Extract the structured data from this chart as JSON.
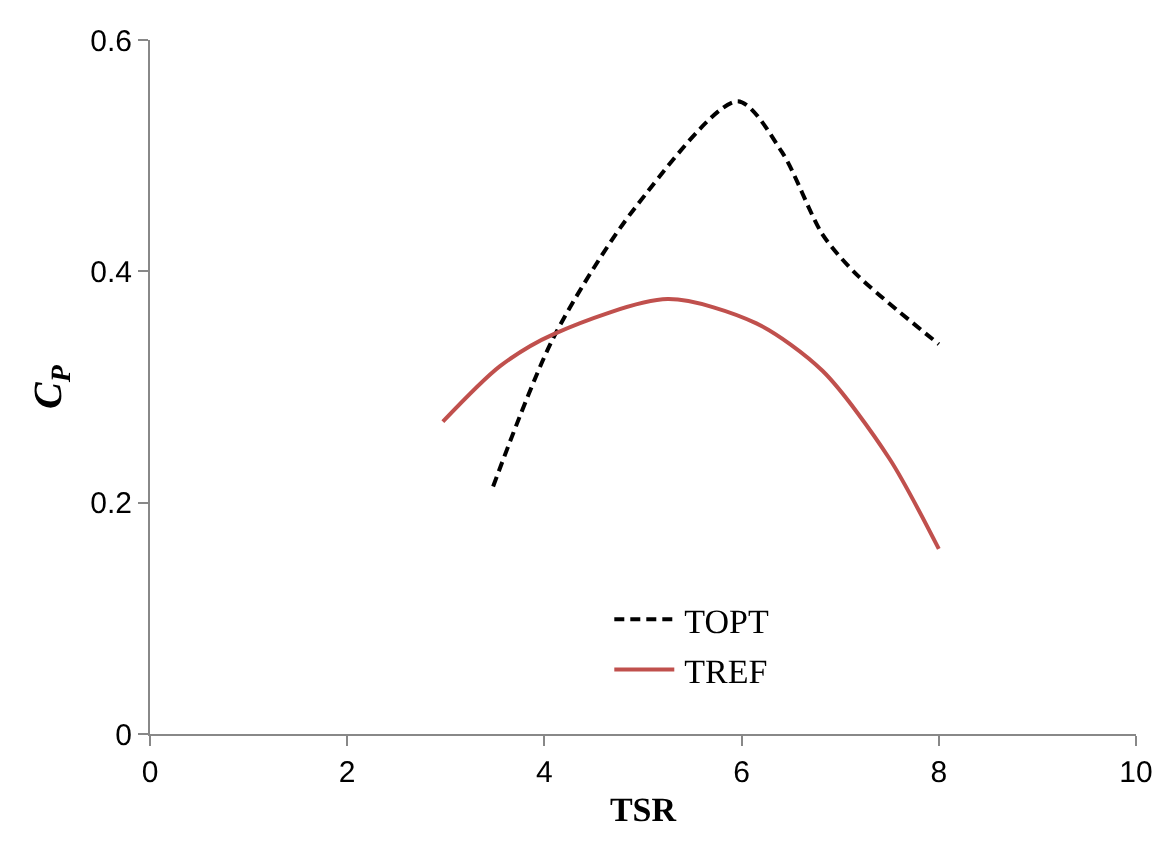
{
  "chart_data": {
    "type": "line",
    "xlabel": "TSR",
    "ylabel": "C$_{P}$",
    "xlim": [
      0,
      10
    ],
    "xticks": [
      0,
      2,
      4,
      6,
      8,
      10
    ],
    "ylim": [
      0,
      0.6
    ],
    "yticks": [
      0,
      0.2,
      0.4,
      0.6
    ],
    "legend": "bottom",
    "marker": "none",
    "series": [
      {
        "name": "TOPT",
        "color": "#000000",
        "line_style": "dashed",
        "x": [
          3.48,
          4.1,
          4.92,
          5.96,
          6.41,
          6.82,
          7.17,
          8.0
        ],
        "values": [
          0.214,
          0.344,
          0.455,
          0.547,
          0.503,
          0.432,
          0.397,
          0.337
        ]
      },
      {
        "name": "TREF",
        "color": "#c0504d",
        "line_style": "solid",
        "x": [
          2.97,
          3.55,
          4.1,
          5.25,
          6.15,
          6.82,
          7.5,
          8.0
        ],
        "values": [
          0.27,
          0.318,
          0.346,
          0.376,
          0.355,
          0.314,
          0.238,
          0.16
        ]
      }
    ]
  }
}
